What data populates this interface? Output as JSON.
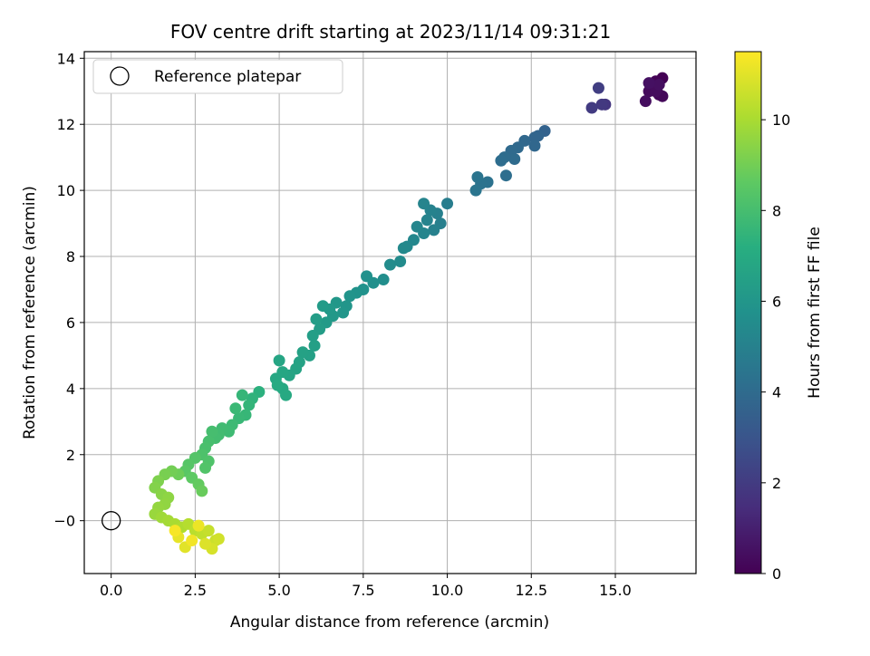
{
  "chart_data": {
    "type": "scatter",
    "title": "FOV centre drift starting at 2023/11/14 09:31:21",
    "xlabel": "Angular distance from reference (arcmin)",
    "ylabel": "Rotation from reference (arcmin)",
    "xlim": [
      -0.8,
      17.4
    ],
    "ylim": [
      -1.6,
      14.2
    ],
    "xticks": [
      "0.0",
      "2.5",
      "5.0",
      "7.5",
      "10.0",
      "12.5",
      "15.0"
    ],
    "xtick_values": [
      0,
      2.5,
      5,
      7.5,
      10,
      12.5,
      15
    ],
    "yticks": [
      "−0",
      "2",
      "4",
      "6",
      "8",
      "10",
      "12",
      "14"
    ],
    "ytick_values": [
      0,
      2,
      4,
      6,
      8,
      10,
      12,
      14
    ],
    "grid": true,
    "legend": {
      "position": "top-left",
      "label": "Reference platepar"
    },
    "reference_point": {
      "x": 0.0,
      "y": 0.0
    },
    "colorbar": {
      "label": "Hours from first FF file",
      "min": 0,
      "max": 11.5,
      "ticks": [
        "0",
        "2",
        "4",
        "6",
        "8",
        "10"
      ],
      "tick_values": [
        0,
        2,
        4,
        6,
        8,
        10
      ],
      "colormap": "viridis"
    },
    "points": [
      {
        "x": 16.4,
        "y": 13.4,
        "t": 0.0
      },
      {
        "x": 16.2,
        "y": 13.3,
        "t": 0.05
      },
      {
        "x": 16.1,
        "y": 13.1,
        "t": 0.1
      },
      {
        "x": 16.3,
        "y": 12.9,
        "t": 0.15
      },
      {
        "x": 16.4,
        "y": 12.85,
        "t": 0.2
      },
      {
        "x": 16.1,
        "y": 13.2,
        "t": 0.25
      },
      {
        "x": 16.0,
        "y": 13.0,
        "t": 0.3
      },
      {
        "x": 16.2,
        "y": 13.0,
        "t": 0.35
      },
      {
        "x": 15.9,
        "y": 12.7,
        "t": 0.4
      },
      {
        "x": 16.3,
        "y": 13.2,
        "t": 0.45
      },
      {
        "x": 16.0,
        "y": 13.25,
        "t": 0.5
      },
      {
        "x": 14.7,
        "y": 12.6,
        "t": 1.8
      },
      {
        "x": 14.6,
        "y": 12.6,
        "t": 1.9
      },
      {
        "x": 14.3,
        "y": 12.5,
        "t": 2.0
      },
      {
        "x": 14.5,
        "y": 13.1,
        "t": 2.1
      },
      {
        "x": 12.9,
        "y": 11.8,
        "t": 3.6
      },
      {
        "x": 12.7,
        "y": 11.65,
        "t": 3.7
      },
      {
        "x": 12.6,
        "y": 11.6,
        "t": 3.75
      },
      {
        "x": 12.6,
        "y": 11.35,
        "t": 3.8
      },
      {
        "x": 12.3,
        "y": 11.5,
        "t": 3.85
      },
      {
        "x": 12.1,
        "y": 11.3,
        "t": 3.9
      },
      {
        "x": 11.9,
        "y": 11.2,
        "t": 3.95
      },
      {
        "x": 12.0,
        "y": 10.95,
        "t": 4.0
      },
      {
        "x": 11.7,
        "y": 11.0,
        "t": 4.05
      },
      {
        "x": 11.6,
        "y": 10.9,
        "t": 4.1
      },
      {
        "x": 11.75,
        "y": 10.45,
        "t": 4.15
      },
      {
        "x": 11.2,
        "y": 10.25,
        "t": 4.3
      },
      {
        "x": 11.0,
        "y": 10.2,
        "t": 4.35
      },
      {
        "x": 10.9,
        "y": 10.4,
        "t": 4.4
      },
      {
        "x": 10.85,
        "y": 10.0,
        "t": 4.45
      },
      {
        "x": 10.0,
        "y": 9.6,
        "t": 4.8
      },
      {
        "x": 9.8,
        "y": 9.0,
        "t": 4.9
      },
      {
        "x": 9.7,
        "y": 9.3,
        "t": 4.95
      },
      {
        "x": 9.6,
        "y": 8.8,
        "t": 5.0
      },
      {
        "x": 9.5,
        "y": 9.4,
        "t": 5.05
      },
      {
        "x": 9.4,
        "y": 9.1,
        "t": 5.1
      },
      {
        "x": 9.3,
        "y": 9.6,
        "t": 5.15
      },
      {
        "x": 9.3,
        "y": 8.7,
        "t": 5.2
      },
      {
        "x": 9.1,
        "y": 8.9,
        "t": 5.25
      },
      {
        "x": 9.0,
        "y": 8.5,
        "t": 5.3
      },
      {
        "x": 8.8,
        "y": 8.3,
        "t": 5.35
      },
      {
        "x": 8.7,
        "y": 8.25,
        "t": 5.4
      },
      {
        "x": 8.3,
        "y": 7.75,
        "t": 5.5
      },
      {
        "x": 8.6,
        "y": 7.85,
        "t": 5.45
      },
      {
        "x": 8.1,
        "y": 7.3,
        "t": 5.6
      },
      {
        "x": 7.8,
        "y": 7.2,
        "t": 5.7
      },
      {
        "x": 7.6,
        "y": 7.4,
        "t": 5.75
      },
      {
        "x": 7.5,
        "y": 7.0,
        "t": 5.8
      },
      {
        "x": 7.3,
        "y": 6.9,
        "t": 5.85
      },
      {
        "x": 7.1,
        "y": 6.8,
        "t": 5.9
      },
      {
        "x": 7.0,
        "y": 6.5,
        "t": 5.95
      },
      {
        "x": 6.9,
        "y": 6.3,
        "t": 6.0
      },
      {
        "x": 6.7,
        "y": 6.6,
        "t": 6.05
      },
      {
        "x": 6.6,
        "y": 6.2,
        "t": 6.1
      },
      {
        "x": 6.5,
        "y": 6.4,
        "t": 6.15
      },
      {
        "x": 6.4,
        "y": 6.0,
        "t": 6.2
      },
      {
        "x": 6.3,
        "y": 6.5,
        "t": 6.25
      },
      {
        "x": 6.2,
        "y": 5.8,
        "t": 6.3
      },
      {
        "x": 6.1,
        "y": 6.1,
        "t": 6.35
      },
      {
        "x": 6.0,
        "y": 5.6,
        "t": 6.4
      },
      {
        "x": 6.05,
        "y": 5.3,
        "t": 6.45
      },
      {
        "x": 5.9,
        "y": 5.0,
        "t": 6.5
      },
      {
        "x": 5.7,
        "y": 5.1,
        "t": 6.55
      },
      {
        "x": 5.6,
        "y": 4.8,
        "t": 6.6
      },
      {
        "x": 5.5,
        "y": 4.6,
        "t": 6.65
      },
      {
        "x": 5.3,
        "y": 4.4,
        "t": 6.7
      },
      {
        "x": 5.0,
        "y": 4.85,
        "t": 6.75
      },
      {
        "x": 5.1,
        "y": 4.5,
        "t": 6.8
      },
      {
        "x": 4.9,
        "y": 4.3,
        "t": 6.85
      },
      {
        "x": 5.1,
        "y": 4.0,
        "t": 6.9
      },
      {
        "x": 5.2,
        "y": 3.8,
        "t": 6.95
      },
      {
        "x": 4.95,
        "y": 4.1,
        "t": 7.0
      },
      {
        "x": 4.4,
        "y": 3.9,
        "t": 7.3
      },
      {
        "x": 4.2,
        "y": 3.7,
        "t": 7.4
      },
      {
        "x": 4.1,
        "y": 3.5,
        "t": 7.5
      },
      {
        "x": 3.9,
        "y": 3.8,
        "t": 7.55
      },
      {
        "x": 4.0,
        "y": 3.2,
        "t": 7.6
      },
      {
        "x": 3.8,
        "y": 3.1,
        "t": 7.65
      },
      {
        "x": 3.7,
        "y": 3.4,
        "t": 7.7
      },
      {
        "x": 3.6,
        "y": 2.9,
        "t": 7.75
      },
      {
        "x": 3.5,
        "y": 2.7,
        "t": 7.8
      },
      {
        "x": 3.3,
        "y": 2.8,
        "t": 7.85
      },
      {
        "x": 3.2,
        "y": 2.6,
        "t": 7.9
      },
      {
        "x": 3.1,
        "y": 2.5,
        "t": 7.95
      },
      {
        "x": 3.0,
        "y": 2.7,
        "t": 8.0
      },
      {
        "x": 2.9,
        "y": 2.4,
        "t": 8.05
      },
      {
        "x": 2.8,
        "y": 2.2,
        "t": 8.1
      },
      {
        "x": 2.7,
        "y": 2.0,
        "t": 8.2
      },
      {
        "x": 2.9,
        "y": 1.8,
        "t": 8.25
      },
      {
        "x": 2.8,
        "y": 1.6,
        "t": 8.3
      },
      {
        "x": 2.5,
        "y": 1.9,
        "t": 8.35
      },
      {
        "x": 2.3,
        "y": 1.7,
        "t": 8.4
      },
      {
        "x": 2.2,
        "y": 1.5,
        "t": 8.5
      },
      {
        "x": 2.4,
        "y": 1.3,
        "t": 8.6
      },
      {
        "x": 2.6,
        "y": 1.1,
        "t": 8.7
      },
      {
        "x": 2.7,
        "y": 0.9,
        "t": 8.8
      },
      {
        "x": 2.0,
        "y": 1.4,
        "t": 8.9
      },
      {
        "x": 1.8,
        "y": 1.5,
        "t": 9.0
      },
      {
        "x": 1.6,
        "y": 1.4,
        "t": 9.1
      },
      {
        "x": 1.4,
        "y": 1.2,
        "t": 9.2
      },
      {
        "x": 1.3,
        "y": 1.0,
        "t": 9.3
      },
      {
        "x": 1.5,
        "y": 0.8,
        "t": 9.4
      },
      {
        "x": 1.7,
        "y": 0.7,
        "t": 9.5
      },
      {
        "x": 1.6,
        "y": 0.5,
        "t": 9.55
      },
      {
        "x": 1.4,
        "y": 0.4,
        "t": 9.6
      },
      {
        "x": 1.3,
        "y": 0.2,
        "t": 9.7
      },
      {
        "x": 1.5,
        "y": 0.1,
        "t": 9.8
      },
      {
        "x": 1.7,
        "y": 0.0,
        "t": 9.9
      },
      {
        "x": 1.9,
        "y": -0.1,
        "t": 10.0
      },
      {
        "x": 2.1,
        "y": -0.2,
        "t": 10.1
      },
      {
        "x": 2.3,
        "y": -0.1,
        "t": 10.2
      },
      {
        "x": 2.5,
        "y": -0.3,
        "t": 10.3
      },
      {
        "x": 2.7,
        "y": -0.4,
        "t": 10.4
      },
      {
        "x": 2.9,
        "y": -0.3,
        "t": 10.5
      },
      {
        "x": 3.1,
        "y": -0.6,
        "t": 10.6
      },
      {
        "x": 3.2,
        "y": -0.55,
        "t": 10.7
      },
      {
        "x": 3.0,
        "y": -0.85,
        "t": 10.8
      },
      {
        "x": 2.8,
        "y": -0.7,
        "t": 10.9
      },
      {
        "x": 2.2,
        "y": -0.8,
        "t": 11.0
      },
      {
        "x": 2.0,
        "y": -0.5,
        "t": 11.1
      },
      {
        "x": 2.6,
        "y": -0.15,
        "t": 11.2
      },
      {
        "x": 2.4,
        "y": -0.6,
        "t": 11.3
      },
      {
        "x": 1.9,
        "y": -0.3,
        "t": 11.4
      }
    ]
  }
}
